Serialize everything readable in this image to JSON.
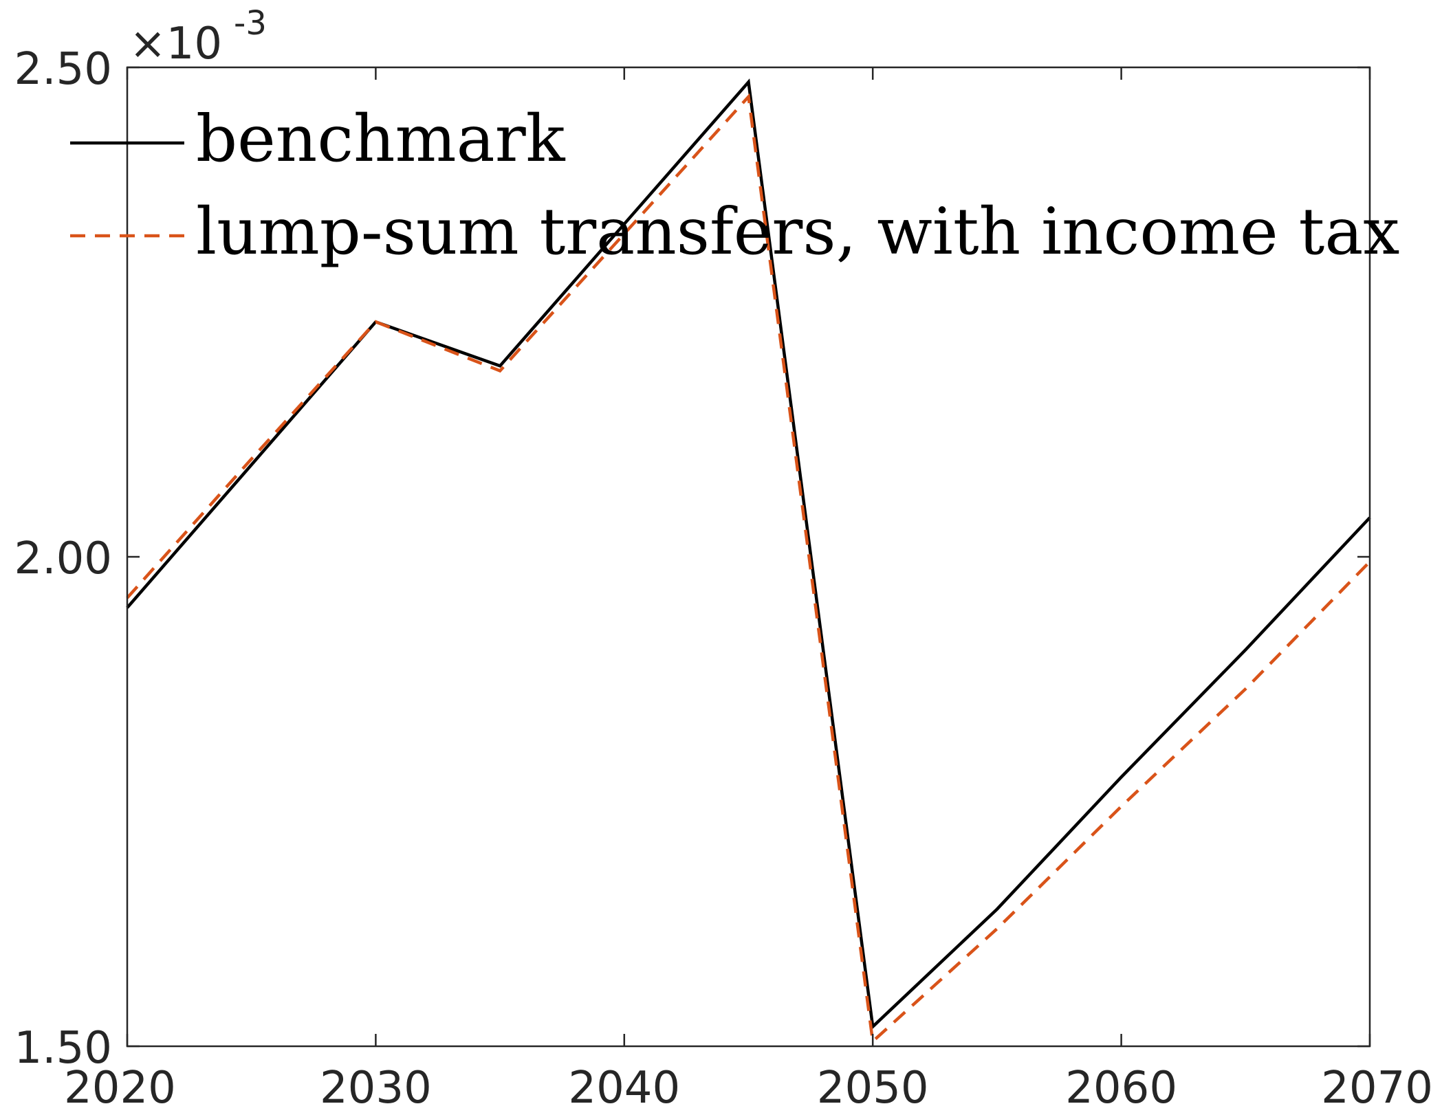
{
  "chart_data": {
    "type": "line",
    "title": "",
    "xlabel": "",
    "ylabel": "",
    "xlim": [
      2020,
      2070
    ],
    "ylim": [
      0.0015,
      0.0025
    ],
    "x_ticks": [
      2020,
      2030,
      2040,
      2050,
      2060,
      2070
    ],
    "x_tick_labels": [
      "2020",
      "2030",
      "2040",
      "2050",
      "2060",
      "2070"
    ],
    "y_ticks": [
      0.0015,
      0.002,
      0.0025
    ],
    "y_tick_labels": [
      "1.50",
      "2.00",
      "2.50"
    ],
    "y_exponent": {
      "base": "×10",
      "power": "-3"
    },
    "grid": false,
    "legend_position": "top-left",
    "series": [
      {
        "name": "benchmark",
        "color": "#000000",
        "style": "solid",
        "x": [
          2020,
          2025,
          2030,
          2035,
          2040,
          2045,
          2050,
          2055,
          2060,
          2065,
          2070
        ],
        "y": [
          0.001948,
          0.002094,
          0.00224,
          0.002195,
          0.00234,
          0.002485,
          0.00152,
          0.00164,
          0.001775,
          0.001905,
          0.00204
        ]
      },
      {
        "name": "lump-sum transfers, with income tax",
        "color": "#D95319",
        "style": "dashed",
        "x": [
          2020,
          2025,
          2030,
          2035,
          2040,
          2045,
          2050,
          2055,
          2060,
          2065,
          2070
        ],
        "y": [
          0.001958,
          0.0021,
          0.00224,
          0.00219,
          0.00233,
          0.00247,
          0.001505,
          0.00162,
          0.001745,
          0.001865,
          0.001995
        ]
      }
    ]
  }
}
